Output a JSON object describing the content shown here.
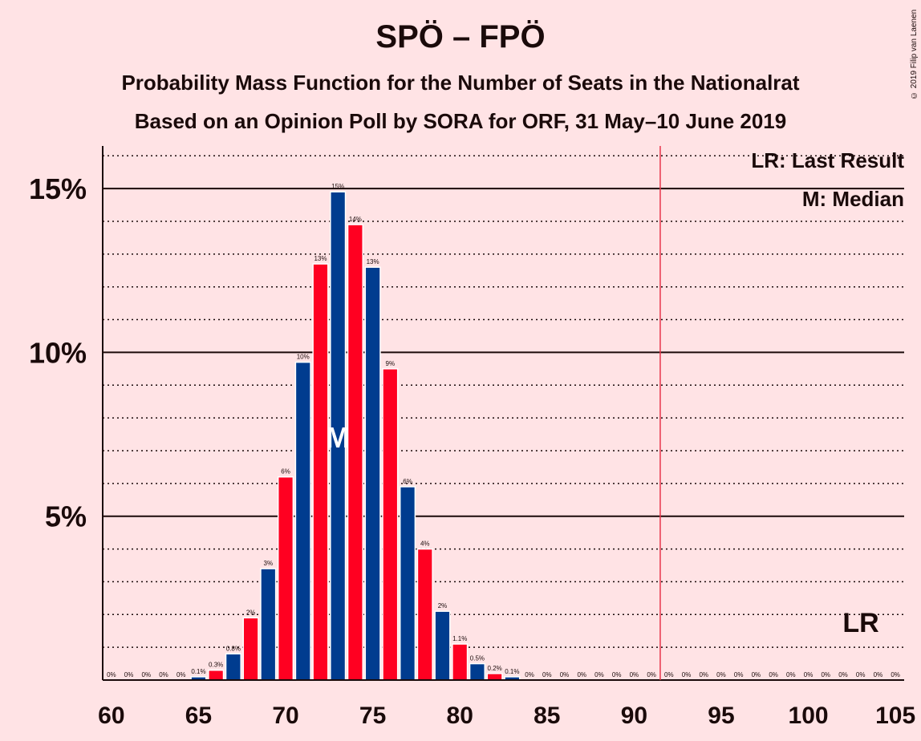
{
  "chart_data": {
    "type": "bar",
    "title": "SPÖ – FPÖ",
    "subtitle": "Probability Mass Function for the Number of Seats in the Nationalrat",
    "subtitle2": "Based on an Opinion Poll by SORA for ORF, 31 May–10 June 2019",
    "copyright": "© 2019 Filip van Laenen",
    "x": [
      60,
      61,
      62,
      63,
      64,
      65,
      66,
      67,
      68,
      69,
      70,
      71,
      72,
      73,
      74,
      75,
      76,
      77,
      78,
      79,
      80,
      81,
      82,
      83,
      84,
      85,
      86,
      87,
      88,
      89,
      90,
      91,
      92,
      93,
      94,
      95,
      96,
      97,
      98,
      99,
      100,
      101,
      102,
      103,
      104,
      105
    ],
    "values": [
      0,
      0,
      0,
      0,
      0,
      0.1,
      0.3,
      0.8,
      1.9,
      3.4,
      6.2,
      9.7,
      12.7,
      14.9,
      13.9,
      12.6,
      9.5,
      5.9,
      4.0,
      2.1,
      1.1,
      0.5,
      0.2,
      0.1,
      0,
      0,
      0,
      0,
      0,
      0,
      0,
      0,
      0,
      0,
      0,
      0,
      0,
      0,
      0,
      0,
      0,
      0,
      0,
      0,
      0,
      0
    ],
    "labels": [
      "0%",
      "0%",
      "0%",
      "0%",
      "0%",
      "0.1%",
      "0.3%",
      "0.8%",
      "2%",
      "3%",
      "6%",
      "10%",
      "13%",
      "15%",
      "14%",
      "13%",
      "9%",
      "6%",
      "4%",
      "2%",
      "1.1%",
      "0.5%",
      "0.2%",
      "0.1%",
      "0%",
      "0%",
      "0%",
      "0%",
      "0%",
      "0%",
      "0%",
      "0%",
      "0%",
      "0%",
      "0%",
      "0%",
      "0%",
      "0%",
      "0%",
      "0%",
      "0%",
      "0%",
      "0%",
      "0%",
      "0%",
      "0%"
    ],
    "x_ticks": [
      60,
      65,
      70,
      75,
      80,
      85,
      90,
      95,
      100,
      105
    ],
    "x_tick_labels": [
      "60",
      "65",
      "70",
      "75",
      "80",
      "85",
      "90",
      "95",
      "100",
      "105"
    ],
    "y_ticks": [
      5,
      10,
      15
    ],
    "y_tick_labels": [
      "5%",
      "10%",
      "15%"
    ],
    "ylim": [
      0,
      16.3
    ],
    "xlim": [
      59.5,
      105.5
    ],
    "grid": "dotted at 1% steps, solid at 5% steps",
    "colors": {
      "odd": "#003c8f",
      "even": "#ff0021",
      "lastResultLine": "#e8364a"
    },
    "median": 73,
    "median_mark": "M",
    "last_result": 91.5,
    "last_result_mark": "LR",
    "legend": [
      "LR: Last Result",
      "M: Median"
    ],
    "legend_position": "top-right"
  }
}
